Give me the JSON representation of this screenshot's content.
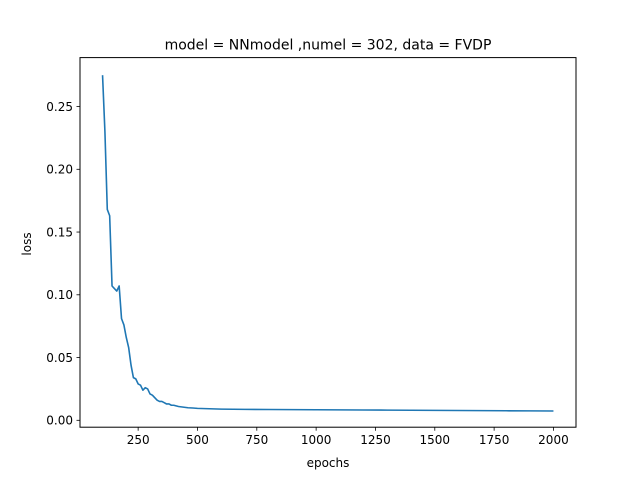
{
  "chart_data": {
    "type": "line",
    "title": "model = NNmodel ,numel = 302, data = FVDP",
    "xlabel": "epochs",
    "ylabel": "loss",
    "xlim": [
      5,
      2095
    ],
    "ylim": [
      -0.0055,
      0.289
    ],
    "xticks": [
      250,
      500,
      750,
      1000,
      1250,
      1500,
      1750,
      2000
    ],
    "xtick_labels": [
      "250",
      "500",
      "750",
      "1000",
      "1250",
      "1500",
      "1750",
      "2000"
    ],
    "yticks": [
      0.0,
      0.05,
      0.1,
      0.15,
      0.2,
      0.25
    ],
    "ytick_labels": [
      "0.00",
      "0.05",
      "0.10",
      "0.15",
      "0.20",
      "0.25"
    ],
    "grid": false,
    "legend": "none",
    "series": [
      {
        "color": "#1f77b4",
        "x": [
          100,
          110,
          120,
          130,
          140,
          150,
          160,
          170,
          180,
          190,
          200,
          210,
          220,
          230,
          240,
          250,
          260,
          270,
          280,
          290,
          300,
          310,
          320,
          330,
          340,
          350,
          360,
          370,
          380,
          390,
          400,
          420,
          440,
          460,
          480,
          500,
          550,
          600,
          700,
          800,
          900,
          1000,
          1100,
          1200,
          1300,
          1400,
          1500,
          1600,
          1700,
          1800,
          1900,
          2000
        ],
        "y": [
          0.275,
          0.23,
          0.168,
          0.163,
          0.107,
          0.105,
          0.103,
          0.107,
          0.081,
          0.076,
          0.066,
          0.058,
          0.044,
          0.034,
          0.033,
          0.029,
          0.028,
          0.024,
          0.026,
          0.025,
          0.021,
          0.02,
          0.018,
          0.016,
          0.015,
          0.015,
          0.014,
          0.013,
          0.013,
          0.012,
          0.012,
          0.011,
          0.0105,
          0.01,
          0.0098,
          0.0095,
          0.0092,
          0.0089,
          0.0087,
          0.0086,
          0.0085,
          0.0084,
          0.0083,
          0.0082,
          0.0081,
          0.008,
          0.0079,
          0.0078,
          0.0077,
          0.0076,
          0.0075,
          0.0074
        ]
      }
    ]
  }
}
